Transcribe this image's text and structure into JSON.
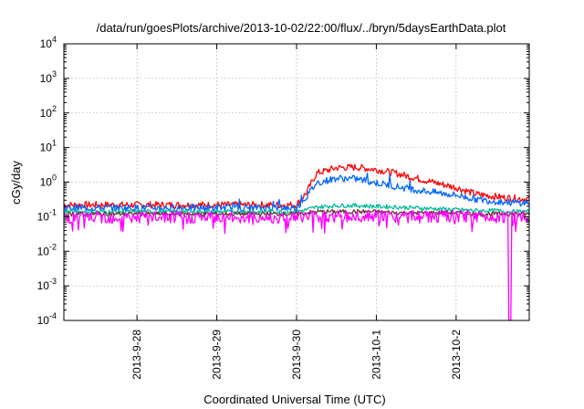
{
  "chart_data": {
    "type": "line",
    "title": "/data/run/goesPlots/archive/2013-10-02/22:00/flux/../bryn/5daysEarthData.plot",
    "xlabel": "Coordinated Universal Time (UTC)",
    "ylabel": "cGy/day",
    "yscale": "log",
    "ylim": [
      0.0001,
      10000
    ],
    "xlim": [
      "2013-09-27 02:00",
      "2013-10-02 22:00"
    ],
    "grid": true,
    "legend": "none",
    "y_ticks": [
      {
        "base": "10",
        "exp": "-4"
      },
      {
        "base": "10",
        "exp": "-3"
      },
      {
        "base": "10",
        "exp": "-2"
      },
      {
        "base": "10",
        "exp": "-1"
      },
      {
        "base": "10",
        "exp": "0"
      },
      {
        "base": "10",
        "exp": "1"
      },
      {
        "base": "10",
        "exp": "2"
      },
      {
        "base": "10",
        "exp": "3"
      },
      {
        "base": "10",
        "exp": "4"
      }
    ],
    "x_ticks": [
      "2013-9-28",
      "2013-9-29",
      "2013-9-30",
      "2013-10-1",
      "2013-10-2"
    ],
    "x": [
      "2013-09-27 02:00",
      "2013-09-27 12:00",
      "2013-09-28 00:00",
      "2013-09-28 12:00",
      "2013-09-29 00:00",
      "2013-09-29 12:00",
      "2013-09-30 00:00",
      "2013-09-30 03:00",
      "2013-09-30 06:00",
      "2013-09-30 12:00",
      "2013-09-30 18:00",
      "2013-10-01 00:00",
      "2013-10-01 06:00",
      "2013-10-01 12:00",
      "2013-10-01 18:00",
      "2013-10-02 00:00",
      "2013-10-02 06:00",
      "2013-10-02 12:00",
      "2013-10-02 16:00",
      "2013-10-02 22:00"
    ],
    "series": [
      {
        "color": "#ff0000",
        "values": [
          0.22,
          0.22,
          0.22,
          0.22,
          0.22,
          0.22,
          0.22,
          0.5,
          1.8,
          2.6,
          2.7,
          2.3,
          1.8,
          1.3,
          0.95,
          0.7,
          0.45,
          0.38,
          0.35,
          0.32
        ]
      },
      {
        "color": "#0066ff",
        "values": [
          0.18,
          0.18,
          0.18,
          0.18,
          0.18,
          0.18,
          0.18,
          0.38,
          0.95,
          1.3,
          1.25,
          0.95,
          0.75,
          0.6,
          0.5,
          0.42,
          0.32,
          0.28,
          0.26,
          0.25
        ]
      },
      {
        "color": "#00bb99",
        "values": [
          0.14,
          0.14,
          0.14,
          0.14,
          0.14,
          0.14,
          0.14,
          0.16,
          0.19,
          0.21,
          0.21,
          0.2,
          0.19,
          0.18,
          0.17,
          0.16,
          0.15,
          0.15,
          0.14,
          0.14
        ]
      },
      {
        "color": "#663333",
        "values": [
          0.12,
          0.12,
          0.12,
          0.12,
          0.12,
          0.12,
          0.12,
          0.13,
          0.14,
          0.14,
          0.14,
          0.14,
          0.13,
          0.13,
          0.13,
          0.13,
          0.12,
          0.12,
          0.12,
          0.12
        ]
      },
      {
        "color": "#ff00ff",
        "values": [
          0.095,
          0.095,
          0.095,
          0.095,
          0.095,
          0.095,
          0.095,
          0.1,
          0.1,
          0.1,
          0.1,
          0.1,
          0.1,
          0.1,
          0.1,
          0.1,
          0.1,
          0.1,
          0.0001,
          0.1
        ]
      }
    ]
  }
}
